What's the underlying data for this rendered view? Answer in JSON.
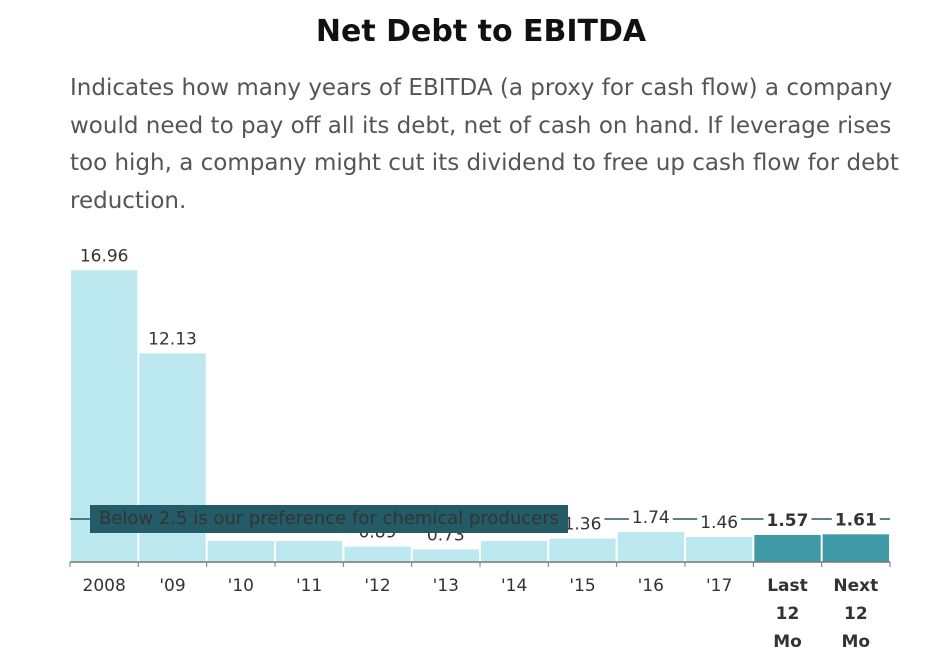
{
  "chart_data": {
    "type": "bar",
    "title": "Net Debt to EBITDA",
    "subtitle": "Indicates how many years of EBITDA (a proxy for cash flow) a company would need to pay off all its debt, net of cash on hand. If leverage rises too high, a company might cut its dividend to free up cash flow for debt reduction.",
    "categories": [
      "2008",
      "'09",
      "'10",
      "'11",
      "'12",
      "'13",
      "'14",
      "'15",
      "'16",
      "'17",
      "Last 12 Mo",
      "Next 12 Mo"
    ],
    "values": [
      16.96,
      12.13,
      1.22,
      1.22,
      0.89,
      0.73,
      1.22,
      1.36,
      1.74,
      1.46,
      1.57,
      1.61
    ],
    "colors": [
      "#bce8f0",
      "#bce8f0",
      "#bce8f0",
      "#bce8f0",
      "#bce8f0",
      "#bce8f0",
      "#bce8f0",
      "#bce8f0",
      "#bce8f0",
      "#bce8f0",
      "#3f9aa8",
      "#3f9aa8"
    ],
    "ylim": [
      0,
      17
    ],
    "reference_line": {
      "value": 2.5,
      "label": "Below 2.5 is our preference for chemical producers"
    }
  }
}
